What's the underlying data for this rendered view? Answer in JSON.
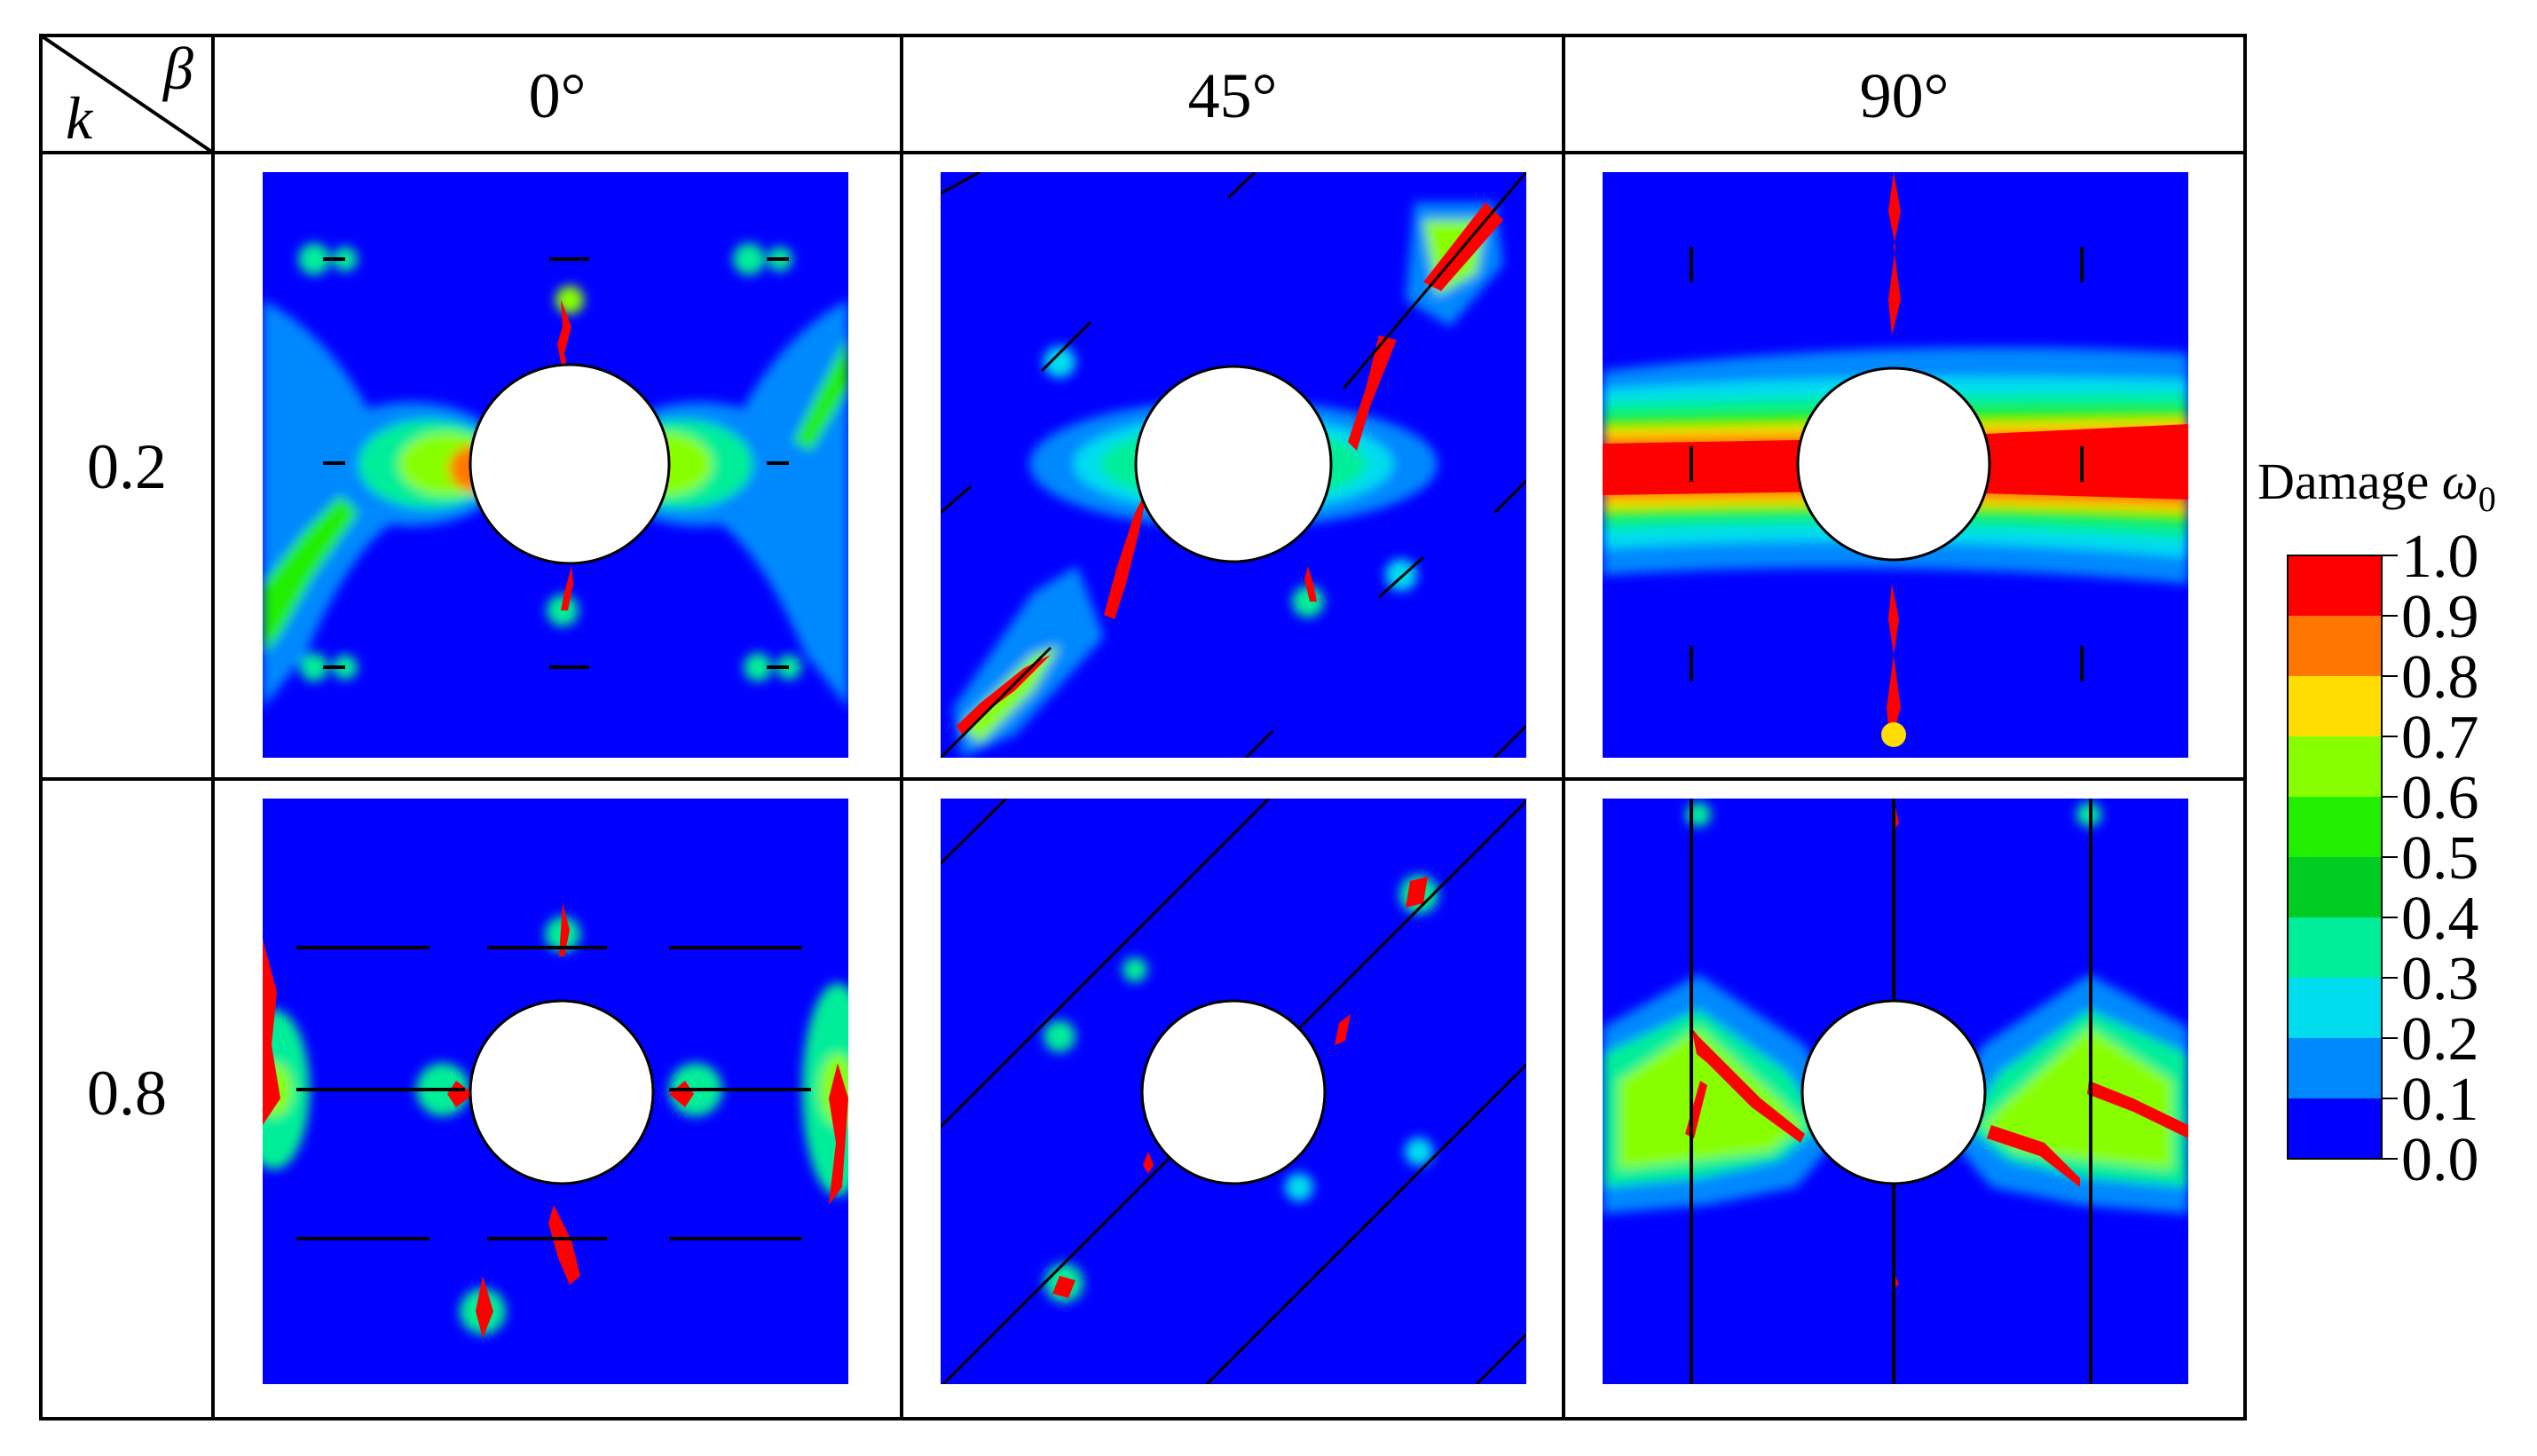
{
  "table": {
    "corner_row_symbol": "k",
    "corner_col_symbol": "β",
    "column_headers": [
      "0°",
      "45°",
      "90°"
    ],
    "row_headers": [
      "0.2",
      "0.8"
    ]
  },
  "legend": {
    "label_text": "Damage ",
    "label_symbol": "ω",
    "label_subscript": "0",
    "ticks": [
      "1.0",
      "0.9",
      "0.8",
      "0.7",
      "0.6",
      "0.5",
      "0.4",
      "0.3",
      "0.2",
      "0.1",
      "0.0"
    ],
    "colors": [
      "#ff0000",
      "#ff7700",
      "#ffdd00",
      "#88ff00",
      "#22ee00",
      "#00cc22",
      "#00ee99",
      "#00ddee",
      "#0088ff",
      "#0000ff"
    ]
  },
  "colors": {
    "background": "#0000ff",
    "level_1": "#0088ff",
    "level_2": "#00ddee",
    "level_3": "#00ee99",
    "level_4": "#22ee00",
    "level_6": "#ffdd00",
    "level_7": "#ff7700",
    "level_max": "#ff0000",
    "hole": "#ffffff",
    "grid_line": "#000000"
  }
}
